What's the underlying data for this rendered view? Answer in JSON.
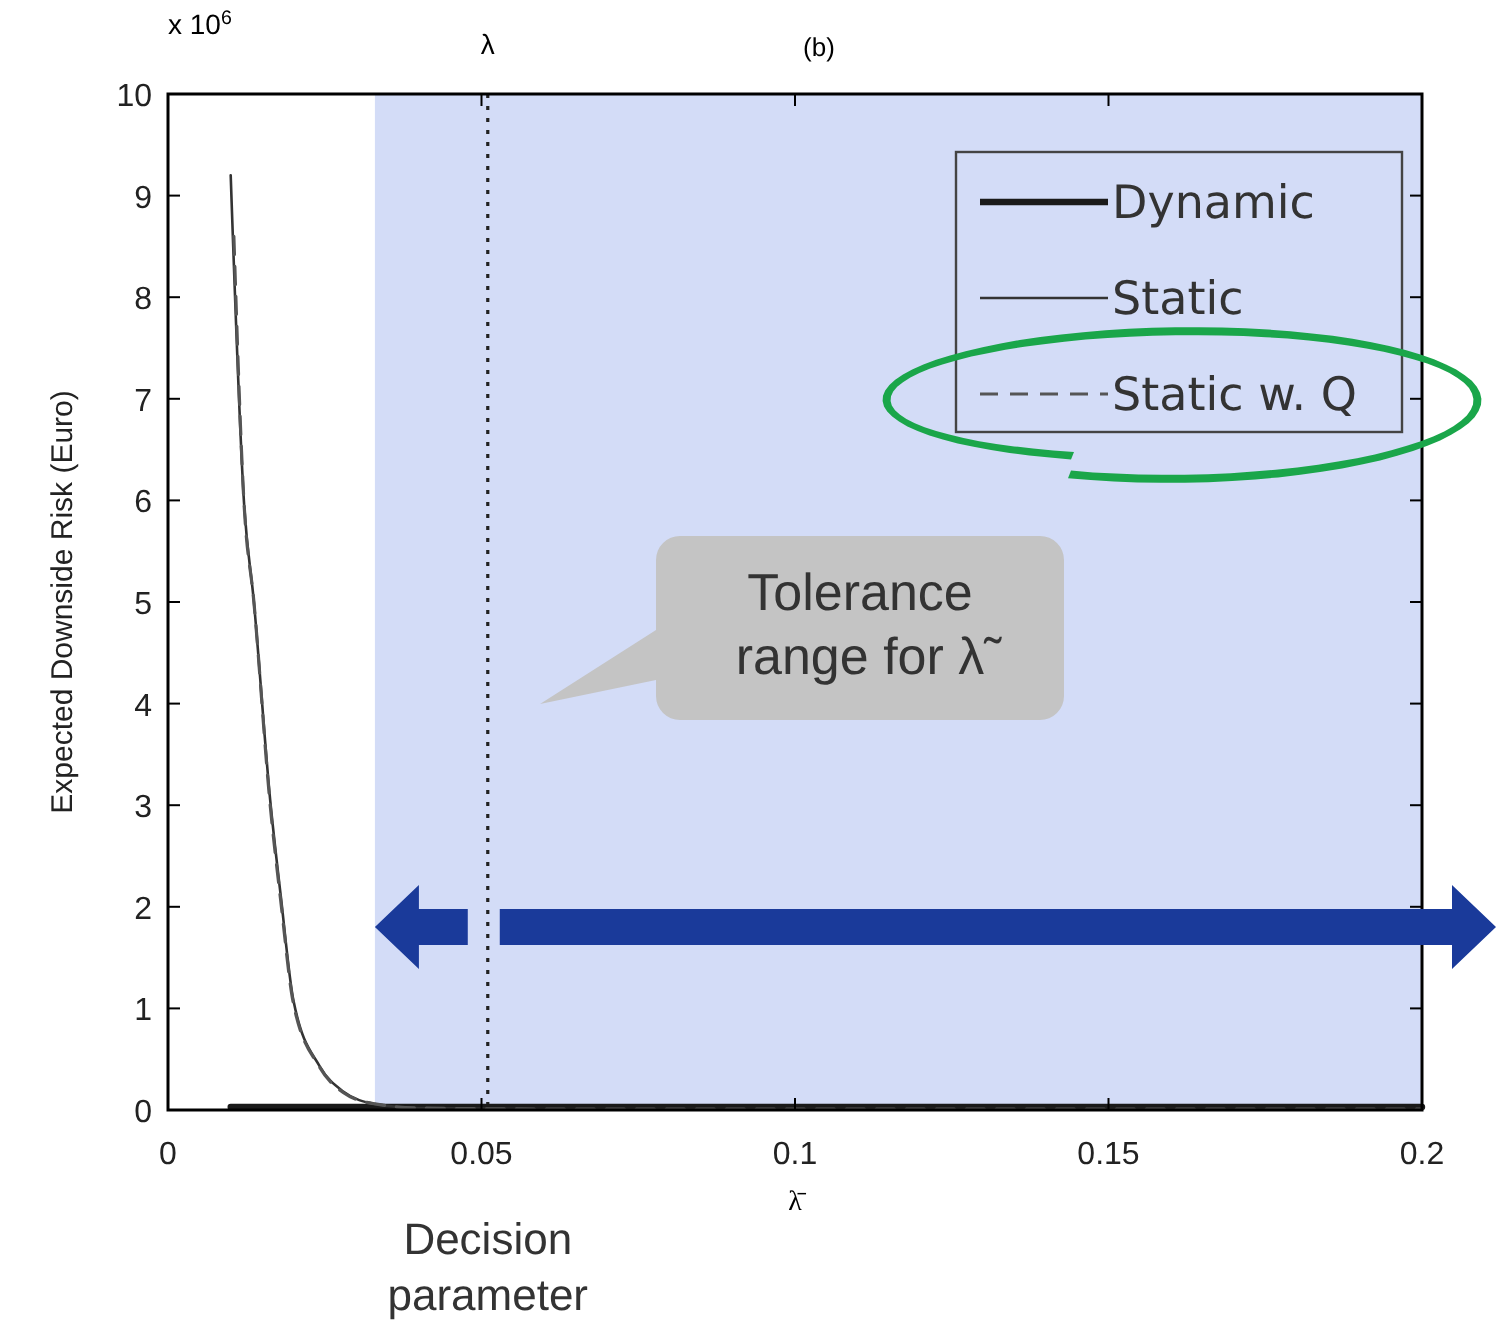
{
  "chart_data": {
    "type": "line",
    "title": "(b)",
    "xlabel": "λ̄",
    "ylabel": "Expected Downside Risk (Euro)",
    "xlim": [
      0,
      0.2
    ],
    "xticks": [
      0,
      0.05,
      0.1,
      0.15,
      0.2
    ],
    "ylim": [
      0,
      10
    ],
    "yticks": [
      0,
      1,
      2,
      3,
      4,
      5,
      6,
      7,
      8,
      9,
      10
    ],
    "legend": "top right",
    "grid": false,
    "series": [
      {
        "name": "Dynamic",
        "color": "#1a1a1a",
        "line_style": "solid",
        "x": [
          0.01,
          0.03,
          0.06,
          0.1,
          0.15,
          0.2
        ],
        "values": [
          0.03,
          0.03,
          0.03,
          0.03,
          0.03,
          0.03
        ]
      },
      {
        "name": "Static",
        "color": "#333333",
        "line_style": "solid",
        "x": [
          0.01,
          0.0121,
          0.0137,
          0.0163,
          0.018,
          0.02,
          0.0242,
          0.028,
          0.033,
          0.04,
          0.06,
          0.1,
          0.15,
          0.2
        ],
        "values": [
          9.2,
          6.0,
          5.0,
          3.05,
          2.1,
          1.08,
          0.43,
          0.18,
          0.06,
          0.02,
          0.01,
          0.01,
          0.01,
          0.01
        ]
      },
      {
        "name": "Static w. Q",
        "color": "#555555",
        "line_style": "dashed",
        "x": [
          0.0105,
          0.0121,
          0.0137,
          0.0163,
          0.018,
          0.02,
          0.0242,
          0.028,
          0.033,
          0.04,
          0.06,
          0.1,
          0.15,
          0.2
        ],
        "values": [
          8.6,
          6.0,
          5.0,
          3.0,
          2.05,
          1.05,
          0.42,
          0.17,
          0.06,
          0.02,
          0.01,
          0.01,
          0.01,
          0.01
        ]
      }
    ],
    "ref_lines": [
      {
        "axis": "x",
        "value": 0.051,
        "label": "λ",
        "line_style": "dotted",
        "color": "#222222"
      }
    ],
    "bands": [
      {
        "axis": "x",
        "from": 0.033,
        "to": 0.2,
        "label": "Tolerance range for λ̃",
        "color": "#d3dcf7"
      }
    ],
    "annotations": [
      "x 10$^{6}$",
      "Decision parameter"
    ]
  }
}
